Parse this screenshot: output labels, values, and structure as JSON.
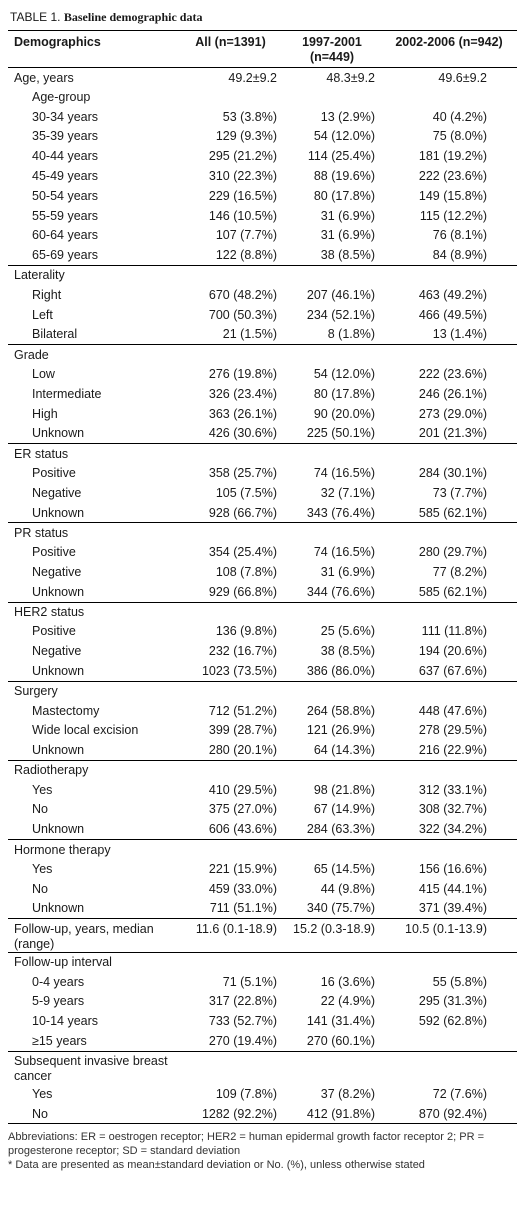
{
  "title": {
    "label": "TABLE 1.",
    "text": "Baseline demographic data"
  },
  "table": {
    "columns": [
      "Demographics",
      "All (n=1391)",
      "1997-2001 (n=449)",
      "2002-2006 (n=942)"
    ],
    "groups": [
      {
        "heading": "Age, years",
        "values": [
          "49.2±9.2",
          "48.3±9.2",
          "49.6±9.2"
        ],
        "rows": [
          {
            "label": "Age-group"
          },
          {
            "label": "30-34 years",
            "values": [
              "53 (3.8%)",
              "13 (2.9%)",
              "40 (4.2%)"
            ]
          },
          {
            "label": "35-39 years",
            "values": [
              "129 (9.3%)",
              "54 (12.0%)",
              "75 (8.0%)"
            ]
          },
          {
            "label": "40-44 years",
            "values": [
              "295 (21.2%)",
              "114 (25.4%)",
              "181 (19.2%)"
            ]
          },
          {
            "label": "45-49 years",
            "values": [
              "310 (22.3%)",
              "88 (19.6%)",
              "222 (23.6%)"
            ]
          },
          {
            "label": "50-54 years",
            "values": [
              "229 (16.5%)",
              "80 (17.8%)",
              "149 (15.8%)"
            ]
          },
          {
            "label": "55-59 years",
            "values": [
              "146 (10.5%)",
              "31 (6.9%)",
              "115 (12.2%)"
            ]
          },
          {
            "label": "60-64 years",
            "values": [
              "107 (7.7%)",
              "31 (6.9%)",
              "76 (8.1%)"
            ]
          },
          {
            "label": "65-69 years",
            "values": [
              "122 (8.8%)",
              "38 (8.5%)",
              "84 (8.9%)"
            ]
          }
        ]
      },
      {
        "heading": "Laterality",
        "rows": [
          {
            "label": "Right",
            "values": [
              "670 (48.2%)",
              "207 (46.1%)",
              "463 (49.2%)"
            ]
          },
          {
            "label": "Left",
            "values": [
              "700 (50.3%)",
              "234 (52.1%)",
              "466 (49.5%)"
            ]
          },
          {
            "label": "Bilateral",
            "values": [
              "21 (1.5%)",
              "8 (1.8%)",
              "13 (1.4%)"
            ]
          }
        ]
      },
      {
        "heading": "Grade",
        "rows": [
          {
            "label": "Low",
            "values": [
              "276 (19.8%)",
              "54 (12.0%)",
              "222 (23.6%)"
            ]
          },
          {
            "label": "Intermediate",
            "values": [
              "326 (23.4%)",
              "80 (17.8%)",
              "246 (26.1%)"
            ]
          },
          {
            "label": "High",
            "values": [
              "363 (26.1%)",
              "90 (20.0%)",
              "273 (29.0%)"
            ]
          },
          {
            "label": "Unknown",
            "values": [
              "426 (30.6%)",
              "225 (50.1%)",
              "201 (21.3%)"
            ]
          }
        ]
      },
      {
        "heading": "ER status",
        "rows": [
          {
            "label": "Positive",
            "values": [
              "358 (25.7%)",
              "74 (16.5%)",
              "284 (30.1%)"
            ]
          },
          {
            "label": "Negative",
            "values": [
              "105 (7.5%)",
              "32 (7.1%)",
              "73 (7.7%)"
            ]
          },
          {
            "label": "Unknown",
            "values": [
              "928 (66.7%)",
              "343 (76.4%)",
              "585 (62.1%)"
            ]
          }
        ]
      },
      {
        "heading": "PR status",
        "rows": [
          {
            "label": "Positive",
            "values": [
              "354 (25.4%)",
              "74 (16.5%)",
              "280 (29.7%)"
            ]
          },
          {
            "label": "Negative",
            "values": [
              "108 (7.8%)",
              "31 (6.9%)",
              "77 (8.2%)"
            ]
          },
          {
            "label": "Unknown",
            "values": [
              "929 (66.8%)",
              "344 (76.6%)",
              "585 (62.1%)"
            ]
          }
        ]
      },
      {
        "heading": "HER2 status",
        "rows": [
          {
            "label": "Positive",
            "values": [
              "136 (9.8%)",
              "25 (5.6%)",
              "111 (11.8%)"
            ]
          },
          {
            "label": "Negative",
            "values": [
              "232 (16.7%)",
              "38 (8.5%)",
              "194 (20.6%)"
            ]
          },
          {
            "label": "Unknown",
            "values": [
              "1023 (73.5%)",
              "386 (86.0%)",
              "637 (67.6%)"
            ]
          }
        ]
      },
      {
        "heading": "Surgery",
        "rows": [
          {
            "label": "Mastectomy",
            "values": [
              "712 (51.2%)",
              "264 (58.8%)",
              "448 (47.6%)"
            ]
          },
          {
            "label": "Wide local excision",
            "values": [
              "399 (28.7%)",
              "121 (26.9%)",
              "278 (29.5%)"
            ]
          },
          {
            "label": "Unknown",
            "values": [
              "280 (20.1%)",
              "64 (14.3%)",
              "216 (22.9%)"
            ]
          }
        ]
      },
      {
        "heading": "Radiotherapy",
        "rows": [
          {
            "label": "Yes",
            "values": [
              "410 (29.5%)",
              "98 (21.8%)",
              "312 (33.1%)"
            ]
          },
          {
            "label": "No",
            "values": [
              "375 (27.0%)",
              "67 (14.9%)",
              "308 (32.7%)"
            ]
          },
          {
            "label": "Unknown",
            "values": [
              "606 (43.6%)",
              "284 (63.3%)",
              "322 (34.2%)"
            ]
          }
        ]
      },
      {
        "heading": "Hormone therapy",
        "rows": [
          {
            "label": "Yes",
            "values": [
              "221 (15.9%)",
              "65 (14.5%)",
              "156 (16.6%)"
            ]
          },
          {
            "label": "No",
            "values": [
              "459 (33.0%)",
              "44 (9.8%)",
              "415 (44.1%)"
            ]
          },
          {
            "label": "Unknown",
            "values": [
              "711 (51.1%)",
              "340 (75.7%)",
              "371 (39.4%)"
            ]
          }
        ]
      },
      {
        "heading": "Follow-up, years, median (range)",
        "values": [
          "11.6 (0.1-18.9)",
          "15.2 (0.3-18.9)",
          "10.5 (0.1-13.9)"
        ],
        "rows": []
      },
      {
        "heading": "Follow-up interval",
        "rows": [
          {
            "label": "0-4 years",
            "values": [
              "71 (5.1%)",
              "16 (3.6%)",
              "55 (5.8%)"
            ]
          },
          {
            "label": "5-9 years",
            "values": [
              "317 (22.8%)",
              "22 (4.9%)",
              "295 (31.3%)"
            ]
          },
          {
            "label": "10-14 years",
            "values": [
              "733 (52.7%)",
              "141 (31.4%)",
              "592 (62.8%)"
            ]
          },
          {
            "label": "≥15 years",
            "values": [
              "270 (19.4%)",
              "270 (60.1%)",
              null
            ]
          }
        ]
      },
      {
        "heading": "Subsequent invasive breast cancer",
        "rows": [
          {
            "label": "Yes",
            "values": [
              "109 (7.8%)",
              "37 (8.2%)",
              "72 (7.6%)"
            ]
          },
          {
            "label": "No",
            "values": [
              "1282 (92.2%)",
              "412 (91.8%)",
              "870 (92.4%)"
            ]
          }
        ]
      }
    ]
  },
  "footnotes": {
    "abbreviations": "Abbreviations: ER = oestrogen receptor; HER2 = human epidermal growth factor receptor 2; PR = progesterone receptor; SD = standard deviation",
    "note": "*  Data are presented as mean±standard deviation or No. (%), unless otherwise stated"
  }
}
